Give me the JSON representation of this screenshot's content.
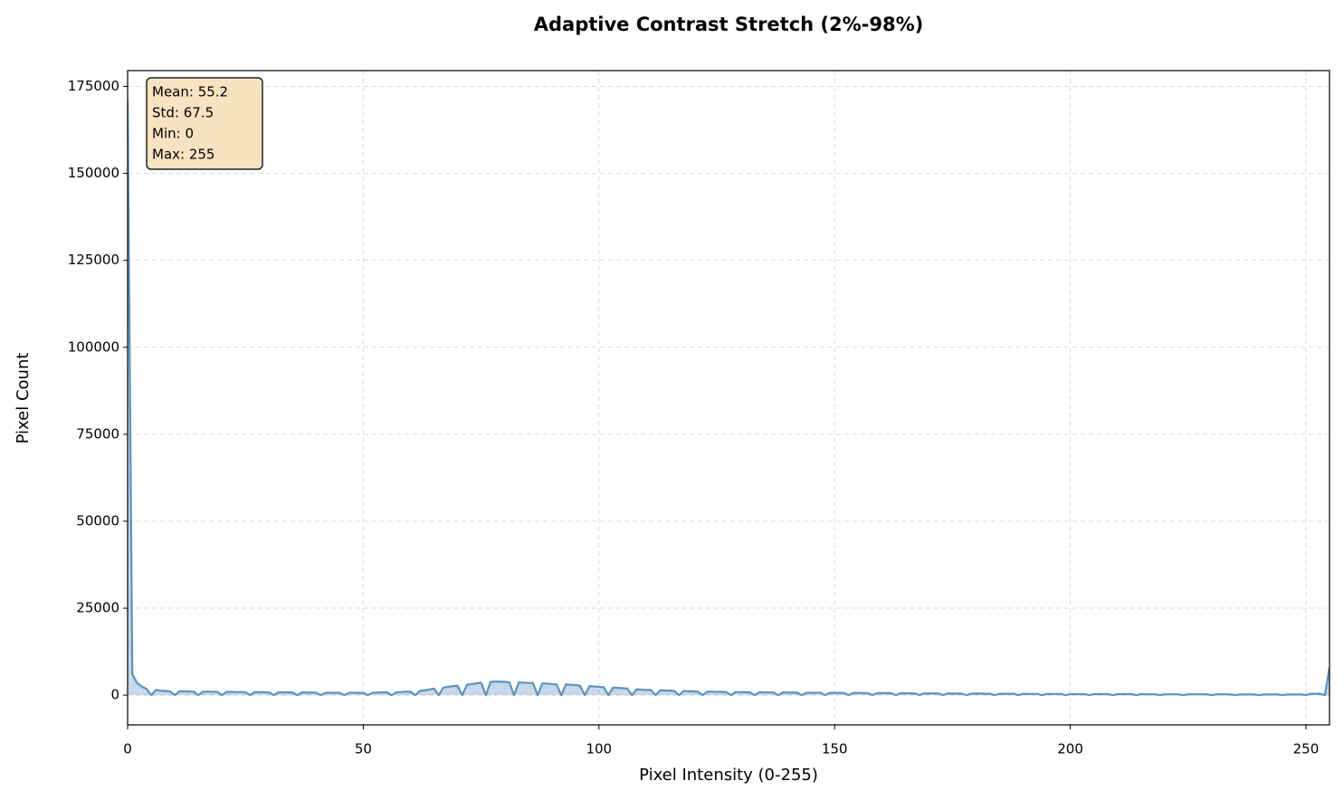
{
  "chart_data": {
    "type": "area",
    "title": "Adaptive Contrast Stretch (2%-98%)",
    "xlabel": "Pixel Intensity (0-255)",
    "ylabel": "Pixel Count",
    "annotations": [
      "Mean: 55.2",
      "Std: 67.5",
      "Min: 0",
      "Max: 255"
    ],
    "color": "#4682b4",
    "grid": true,
    "xlim": [
      0,
      255
    ],
    "ylim": [
      -8550,
      179550
    ],
    "xticks": [
      0,
      50,
      100,
      150,
      200,
      250
    ],
    "yticks": [
      0,
      25000,
      50000,
      75000,
      100000,
      125000,
      150000,
      175000
    ],
    "x": [
      0,
      1,
      2,
      3,
      4,
      5,
      6,
      7,
      8,
      9,
      10,
      11,
      12,
      13,
      14,
      15,
      16,
      17,
      18,
      19,
      20,
      21,
      22,
      23,
      24,
      25,
      26,
      27,
      28,
      29,
      30,
      31,
      32,
      33,
      34,
      35,
      36,
      37,
      38,
      39,
      40,
      41,
      42,
      43,
      44,
      45,
      46,
      47,
      48,
      49,
      50,
      51,
      52,
      53,
      54,
      55,
      56,
      57,
      58,
      59,
      60,
      61,
      62,
      63,
      64,
      65,
      66,
      67,
      68,
      69,
      70,
      71,
      72,
      73,
      74,
      75,
      76,
      77,
      78,
      79,
      80,
      81,
      82,
      83,
      84,
      85,
      86,
      87,
      88,
      89,
      90,
      91,
      92,
      93,
      94,
      95,
      96,
      97,
      98,
      99,
      100,
      101,
      102,
      103,
      104,
      105,
      106,
      107,
      108,
      109,
      110,
      111,
      112,
      113,
      114,
      115,
      116,
      117,
      118,
      119,
      120,
      121,
      122,
      123,
      124,
      125,
      126,
      127,
      128,
      129,
      130,
      131,
      132,
      133,
      134,
      135,
      136,
      137,
      138,
      139,
      140,
      141,
      142,
      143,
      144,
      145,
      146,
      147,
      148,
      149,
      150,
      151,
      152,
      153,
      154,
      155,
      156,
      157,
      158,
      159,
      160,
      161,
      162,
      163,
      164,
      165,
      166,
      167,
      168,
      169,
      170,
      171,
      172,
      173,
      174,
      175,
      176,
      177,
      178,
      179,
      180,
      181,
      182,
      183,
      184,
      185,
      186,
      187,
      188,
      189,
      190,
      191,
      192,
      193,
      194,
      195,
      196,
      197,
      198,
      199,
      200,
      201,
      202,
      203,
      204,
      205,
      206,
      207,
      208,
      209,
      210,
      211,
      212,
      213,
      214,
      215,
      216,
      217,
      218,
      219,
      220,
      221,
      222,
      223,
      224,
      225,
      226,
      227,
      228,
      229,
      230,
      231,
      232,
      233,
      234,
      235,
      236,
      237,
      238,
      239,
      240,
      241,
      242,
      243,
      244,
      245,
      246,
      247,
      248,
      249,
      250,
      251,
      252,
      253,
      254,
      255
    ],
    "values": [
      171000,
      6000,
      3500,
      2500,
      1800,
      0,
      1500,
      1300,
      1200,
      1100,
      0,
      1100,
      1100,
      1050,
      1000,
      0,
      1000,
      1000,
      1000,
      950,
      0,
      950,
      950,
      900,
      900,
      850,
      0,
      900,
      850,
      850,
      800,
      0,
      800,
      800,
      800,
      750,
      0,
      800,
      750,
      750,
      700,
      0,
      700,
      700,
      700,
      650,
      0,
      700,
      700,
      650,
      650,
      0,
      700,
      750,
      800,
      800,
      0,
      800,
      900,
      1000,
      1000,
      0,
      1200,
      1400,
      1600,
      1900,
      0,
      2200,
      2400,
      2600,
      2700,
      0,
      3000,
      3200,
      3400,
      3600,
      0,
      3800,
      3900,
      3900,
      3800,
      3700,
      0,
      3700,
      3600,
      3500,
      3500,
      0,
      3400,
      3300,
      3200,
      3100,
      0,
      3100,
      3000,
      2900,
      2700,
      0,
      2600,
      2500,
      2400,
      2300,
      0,
      2200,
      2100,
      2000,
      1900,
      0,
      1700,
      1600,
      1500,
      1500,
      0,
      1400,
      1300,
      1300,
      1200,
      0,
      1200,
      1100,
      1100,
      1000,
      0,
      1000,
      1000,
      950,
      950,
      900,
      0,
      900,
      900,
      850,
      850,
      0,
      850,
      800,
      800,
      800,
      0,
      800,
      750,
      750,
      750,
      0,
      700,
      700,
      700,
      700,
      0,
      700,
      650,
      650,
      650,
      0,
      650,
      650,
      600,
      600,
      0,
      600,
      600,
      600,
      550,
      0,
      550,
      550,
      550,
      500,
      0,
      500,
      500,
      500,
      500,
      0,
      500,
      450,
      450,
      450,
      0,
      450,
      450,
      450,
      400,
      400,
      0,
      400,
      400,
      400,
      400,
      0,
      400,
      350,
      350,
      350,
      0,
      350,
      350,
      350,
      350,
      0,
      300,
      300,
      300,
      300,
      0,
      300,
      300,
      300,
      300,
      0,
      300,
      300,
      300,
      300,
      0,
      300,
      250,
      250,
      250,
      0,
      250,
      250,
      250,
      250,
      0,
      250,
      250,
      250,
      250,
      250,
      0,
      250,
      250,
      250,
      200,
      0,
      200,
      200,
      200,
      200,
      0,
      200,
      200,
      200,
      200,
      0,
      200,
      200,
      200,
      200,
      0,
      400,
      400,
      400,
      0,
      8000
    ]
  }
}
